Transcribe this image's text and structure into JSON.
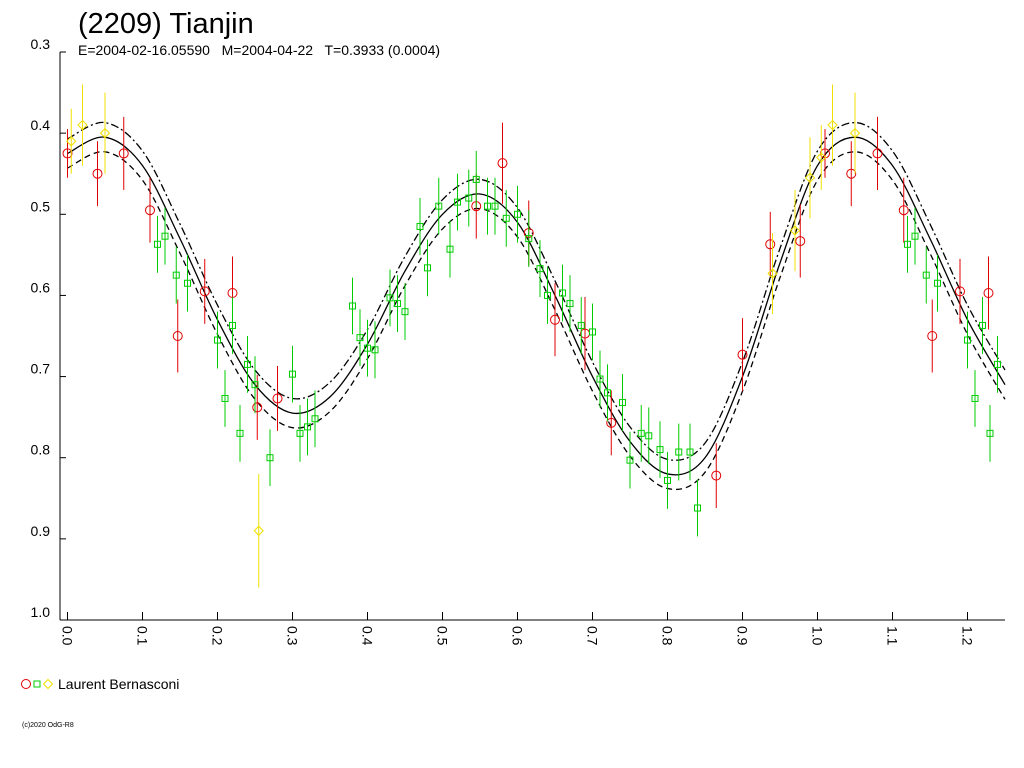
{
  "chart_data": {
    "type": "scatter",
    "title": "(2209) Tianjin",
    "subtitle": "E=2004-02-16.05590   M=2004-04-22   T=0.3933 (0.0004)",
    "legend": "Laurent Bernasconi",
    "footer": "(c)2020 OdG-R8",
    "xlim": [
      -0.01,
      1.25
    ],
    "ylim": [
      0.3,
      1.0
    ],
    "y_inverted": true,
    "xticks": [
      {
        "value": 0,
        "label": "0.0"
      },
      0.1,
      0.2,
      0.3,
      0.4,
      0.5,
      0.6,
      0.7,
      0.8,
      0.9,
      {
        "value": 1,
        "label": "1.0"
      },
      1.1,
      1.2
    ],
    "yticks": [
      0.3,
      0.4,
      0.5,
      0.6,
      0.7,
      0.8,
      0.9,
      {
        "value": 1,
        "label": "1.0"
      }
    ],
    "series": [
      {
        "marker": "circle",
        "color": "#e00000",
        "x": [
          0.0,
          0.04,
          0.075,
          0.11,
          0.147,
          0.183,
          0.22,
          0.253,
          0.28,
          0.545,
          0.58,
          0.615,
          0.65,
          0.69,
          0.725,
          0.865,
          0.9,
          0.937,
          0.977,
          1.01,
          1.045,
          1.08,
          1.115,
          1.153,
          1.19,
          1.228
        ],
        "values": [
          0.425,
          0.45,
          0.425,
          0.495,
          0.65,
          0.595,
          0.597,
          0.738,
          0.727,
          0.49,
          0.437,
          0.523,
          0.63,
          0.647,
          0.757,
          0.822,
          0.673,
          0.537,
          0.533,
          0.425,
          0.45,
          0.425,
          0.495,
          0.65,
          0.595,
          0.597
        ],
        "errors": [
          0.03,
          0.04,
          0.045,
          0.04,
          0.045,
          0.04,
          0.045,
          0.04,
          0.04,
          0.04,
          0.05,
          0.04,
          0.045,
          0.045,
          0.04,
          0.04,
          0.045,
          0.04,
          0.045,
          0.03,
          0.04,
          0.045,
          0.04,
          0.045,
          0.04,
          0.045
        ]
      },
      {
        "marker": "square",
        "color": "#00cc00",
        "x": [
          0.12,
          0.13,
          0.145,
          0.16,
          0.2,
          0.21,
          0.22,
          0.23,
          0.24,
          0.25,
          0.27,
          0.3,
          0.31,
          0.32,
          0.33,
          0.38,
          0.39,
          0.4,
          0.41,
          0.43,
          0.44,
          0.45,
          0.47,
          0.48,
          0.495,
          0.51,
          0.52,
          0.535,
          0.545,
          0.56,
          0.57,
          0.585,
          0.6,
          0.615,
          0.63,
          0.64,
          0.66,
          0.67,
          0.685,
          0.7,
          0.71,
          0.72,
          0.74,
          0.75,
          0.765,
          0.775,
          0.79,
          0.8,
          0.815,
          0.83,
          0.84,
          1.12,
          1.13,
          1.145,
          1.16,
          1.2,
          1.21,
          1.22,
          1.23,
          1.24
        ],
        "values": [
          0.537,
          0.527,
          0.575,
          0.585,
          0.655,
          0.727,
          0.637,
          0.77,
          0.685,
          0.71,
          0.8,
          0.697,
          0.77,
          0.762,
          0.752,
          0.613,
          0.652,
          0.665,
          0.667,
          0.603,
          0.61,
          0.62,
          0.515,
          0.566,
          0.49,
          0.543,
          0.485,
          0.48,
          0.457,
          0.49,
          0.49,
          0.505,
          0.5,
          0.53,
          0.567,
          0.6,
          0.597,
          0.61,
          0.637,
          0.645,
          0.703,
          0.72,
          0.732,
          0.803,
          0.77,
          0.773,
          0.79,
          0.828,
          0.793,
          0.793,
          0.862,
          0.537,
          0.527,
          0.575,
          0.585,
          0.655,
          0.727,
          0.637,
          0.77,
          0.685
        ],
        "errors": [
          0.035,
          0.035,
          0.035,
          0.035,
          0.035,
          0.035,
          0.035,
          0.035,
          0.035,
          0.035,
          0.035,
          0.035,
          0.035,
          0.035,
          0.035,
          0.035,
          0.035,
          0.035,
          0.035,
          0.035,
          0.035,
          0.035,
          0.035,
          0.035,
          0.035,
          0.035,
          0.035,
          0.035,
          0.035,
          0.035,
          0.035,
          0.035,
          0.035,
          0.035,
          0.035,
          0.035,
          0.035,
          0.035,
          0.035,
          0.035,
          0.035,
          0.035,
          0.035,
          0.035,
          0.035,
          0.035,
          0.035,
          0.035,
          0.035,
          0.035,
          0.035,
          0.035,
          0.035,
          0.035,
          0.035,
          0.035,
          0.035,
          0.035,
          0.035,
          0.035
        ]
      },
      {
        "marker": "diamond",
        "color": "#f0e000",
        "x": [
          0.005,
          0.02,
          0.05,
          0.255,
          0.94,
          0.97,
          0.99,
          1.005,
          1.02,
          1.05
        ],
        "values": [
          0.41,
          0.39,
          0.4,
          0.89,
          0.573,
          0.52,
          0.455,
          0.43,
          0.39,
          0.4
        ],
        "errors": [
          0.04,
          0.05,
          0.05,
          0.07,
          0.05,
          0.05,
          0.05,
          0.04,
          0.05,
          0.05
        ]
      }
    ],
    "fit": {
      "x": [
        0,
        0.05,
        0.1,
        0.15,
        0.2,
        0.25,
        0.3,
        0.35,
        0.4,
        0.45,
        0.5,
        0.55,
        0.6,
        0.65,
        0.7,
        0.75,
        0.8,
        0.85,
        0.9,
        0.95,
        1.0,
        1.05,
        1.1,
        1.15,
        1.2,
        1.25
      ],
      "lines": [
        {
          "style": "solid",
          "color": "#000000",
          "values": [
            0.425,
            0.405,
            0.44,
            0.53,
            0.63,
            0.71,
            0.745,
            0.725,
            0.66,
            0.57,
            0.5,
            0.475,
            0.51,
            0.6,
            0.7,
            0.78,
            0.82,
            0.8,
            0.7,
            0.56,
            0.44,
            0.405,
            0.44,
            0.53,
            0.63,
            0.71
          ]
        },
        {
          "style": "dashdot",
          "color": "#000000",
          "values": [
            0.407,
            0.387,
            0.422,
            0.512,
            0.612,
            0.692,
            0.727,
            0.707,
            0.642,
            0.552,
            0.482,
            0.457,
            0.492,
            0.582,
            0.682,
            0.762,
            0.802,
            0.782,
            0.682,
            0.542,
            0.422,
            0.387,
            0.422,
            0.512,
            0.612,
            0.692
          ]
        },
        {
          "style": "dashed",
          "color": "#000000",
          "values": [
            0.443,
            0.423,
            0.458,
            0.548,
            0.648,
            0.728,
            0.763,
            0.743,
            0.678,
            0.588,
            0.518,
            0.493,
            0.528,
            0.618,
            0.718,
            0.798,
            0.838,
            0.818,
            0.718,
            0.578,
            0.458,
            0.423,
            0.458,
            0.548,
            0.648,
            0.728
          ]
        }
      ]
    }
  }
}
